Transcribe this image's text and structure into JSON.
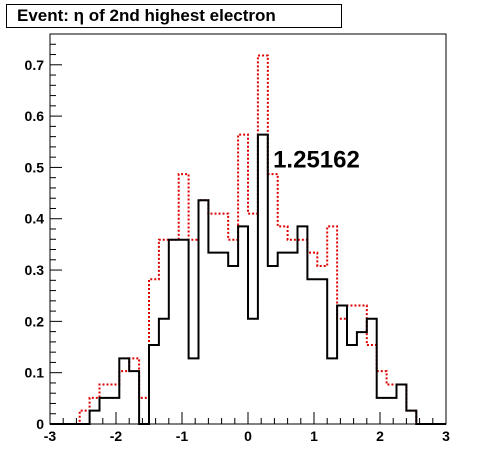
{
  "chart_data": {
    "type": "histogram",
    "title": "Event: η of 2nd highest electron",
    "annotation": "1.25162",
    "xlabel": "",
    "ylabel": "",
    "xlim": [
      -3,
      3
    ],
    "ylim": [
      0,
      0.76
    ],
    "x_ticks": [
      -3,
      -2,
      -1,
      0,
      1,
      2,
      3
    ],
    "x_tick_labels": [
      "-3",
      "-2",
      "-1",
      "0",
      "1",
      "2",
      "3"
    ],
    "y_ticks": [
      0,
      0.1,
      0.2,
      0.3,
      0.4,
      0.5,
      0.6,
      0.7
    ],
    "y_tick_labels": [
      "0",
      "0.1",
      "0.2",
      "0.3",
      "0.4",
      "0.5",
      "0.6",
      "0.7"
    ],
    "grid": false,
    "bin_edges": [
      -3.0,
      -2.85,
      -2.7,
      -2.55,
      -2.4,
      -2.25,
      -2.1,
      -1.95,
      -1.8,
      -1.65,
      -1.5,
      -1.35,
      -1.2,
      -1.05,
      -0.9,
      -0.75,
      -0.6,
      -0.45,
      -0.3,
      -0.15,
      0.0,
      0.15,
      0.3,
      0.45,
      0.6,
      0.75,
      0.9,
      1.05,
      1.2,
      1.35,
      1.5,
      1.65,
      1.8,
      1.95,
      2.1,
      2.25,
      2.4,
      2.55,
      2.7,
      2.85,
      3.0
    ],
    "series": [
      {
        "color": "#000000",
        "style": "solid",
        "values": [
          0,
          0,
          0,
          0,
          0.026,
          0.051,
          0.051,
          0.128,
          0.103,
          0.0,
          0.154,
          0.205,
          0.359,
          0.359,
          0.128,
          0.436,
          0.334,
          0.334,
          0.308,
          0.385,
          0.205,
          0.564,
          0.308,
          0.334,
          0.334,
          0.385,
          0.282,
          0.282,
          0.128,
          0.231,
          0.154,
          0.179,
          0.205,
          0.051,
          0.051,
          0.077,
          0.026,
          0,
          0,
          0
        ]
      },
      {
        "color": "#dd0000",
        "style": "dotted",
        "values": [
          0,
          0,
          0,
          0.026,
          0.051,
          0.077,
          0.077,
          0.103,
          0.128,
          0.051,
          0.282,
          0.359,
          0.359,
          0.487,
          0.359,
          0.436,
          0.41,
          0.41,
          0.359,
          0.564,
          0.41,
          0.718,
          0.487,
          0.385,
          0.359,
          0.359,
          0.334,
          0.308,
          0.385,
          0.205,
          0.231,
          0.231,
          0.154,
          0.103,
          0.077,
          0.077,
          0.026,
          0.0,
          0.0,
          0.0
        ]
      }
    ]
  }
}
